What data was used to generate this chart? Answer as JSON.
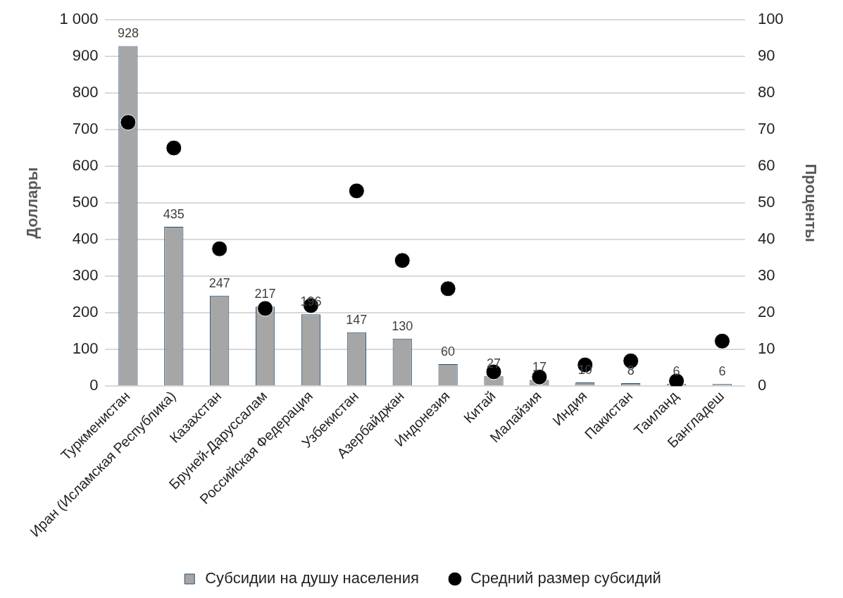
{
  "chart_data": {
    "type": "bar",
    "categories": [
      "Туркменистан",
      "Иран (Исламская Республика)",
      "Казахстан",
      "Бруней-Даруссалам",
      "Российская Федерация",
      "Узбекистан",
      "Азербайджан",
      "Индонезия",
      "Китай",
      "Малайзия",
      "Индия",
      "Пакистан",
      "Таиланд",
      "Бангладеш"
    ],
    "ylabel": "Доллары",
    "y2label": "Проценты",
    "series": [
      {
        "name": "Субсидии на душу населения",
        "color": "#a6a6a6",
        "values": [
          928,
          435,
          247,
          217,
          196,
          147,
          130,
          60,
          27,
          17,
          10,
          8,
          6,
          6
        ],
        "data_labels": true
      },
      {
        "name": "Средний размер субсидий",
        "type": "scatter",
        "axis": "y2",
        "color": "#000000",
        "values": [
          72,
          65,
          37.5,
          21.2,
          22,
          53.3,
          34.3,
          26.6,
          3.9,
          2.5,
          5.8,
          6.9,
          1.4,
          12.3
        ]
      }
    ],
    "ylim": [
      0,
      1000
    ],
    "yticks": [
      0,
      100,
      200,
      300,
      400,
      500,
      600,
      700,
      800,
      900,
      {
        "value": 1000,
        "label": "1 000"
      }
    ],
    "y2lim": [
      0,
      100
    ],
    "y2ticks": [
      0,
      10,
      20,
      30,
      40,
      50,
      60,
      70,
      80,
      90,
      100
    ],
    "grid": "y",
    "legend": "bottom",
    "marker": "circle"
  }
}
